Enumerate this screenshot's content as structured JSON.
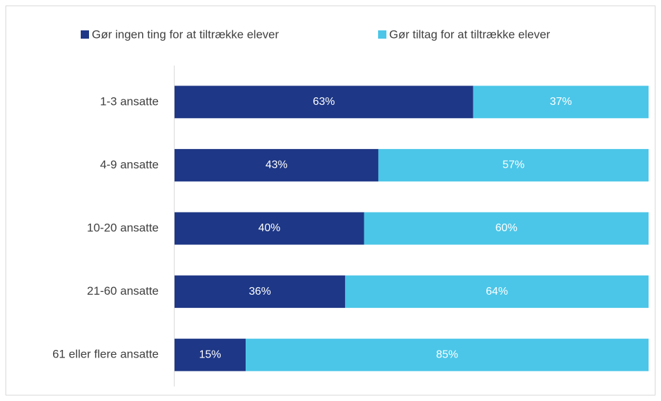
{
  "chart_data": {
    "type": "stacked-bar-horizontal",
    "categories": [
      "1-3 ansatte",
      "4-9 ansatte",
      "10-20 ansatte",
      "21-60 ansatte",
      "61 eller flere ansatte"
    ],
    "series": [
      {
        "name": "Gør ingen ting for at tiltrække elever",
        "color": "#1e3786",
        "values": [
          63,
          43,
          40,
          36,
          15
        ],
        "value_labels": [
          "63%",
          "43%",
          "40%",
          "36%",
          "15%"
        ]
      },
      {
        "name": "Gør tiltag for at tiltrække elever",
        "color": "#4bc6e8",
        "values": [
          37,
          57,
          60,
          64,
          85
        ],
        "value_labels": [
          "37%",
          "57%",
          "60%",
          "64%",
          "85%"
        ]
      }
    ],
    "legend": "top"
  }
}
